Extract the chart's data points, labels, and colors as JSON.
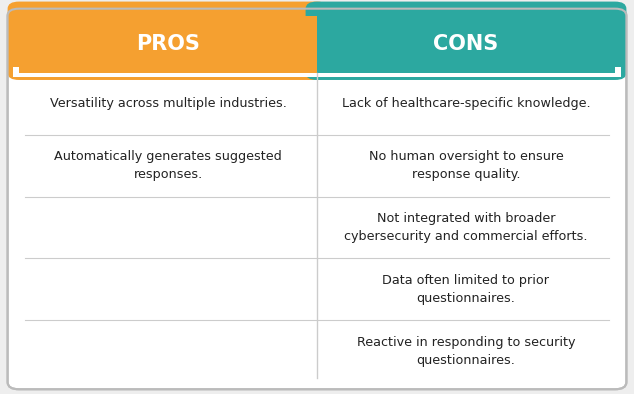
{
  "header_pros": "PROS",
  "header_cons": "CONS",
  "header_pros_color": "#F5A030",
  "header_cons_color": "#2CA8A0",
  "header_text_color": "#FFFFFF",
  "body_bg_color": "#FFFFFF",
  "outer_bg_color": "#EEEEEE",
  "divider_color": "#CCCCCC",
  "border_color": "#BBBBBB",
  "text_color": "#222222",
  "pros_items": [
    "Versatility across multiple industries.",
    "Automatically generates suggested\nresponses."
  ],
  "cons_items": [
    "Lack of healthcare-specific knowledge.",
    "No human oversight to ensure\nresponse quality.",
    "Not integrated with broader\ncybersecurity and commercial efforts.",
    "Data often limited to prior\nquestionnaires.",
    "Reactive in responding to security\nquestionnaires."
  ],
  "figsize": [
    6.34,
    3.94
  ],
  "dpi": 100
}
